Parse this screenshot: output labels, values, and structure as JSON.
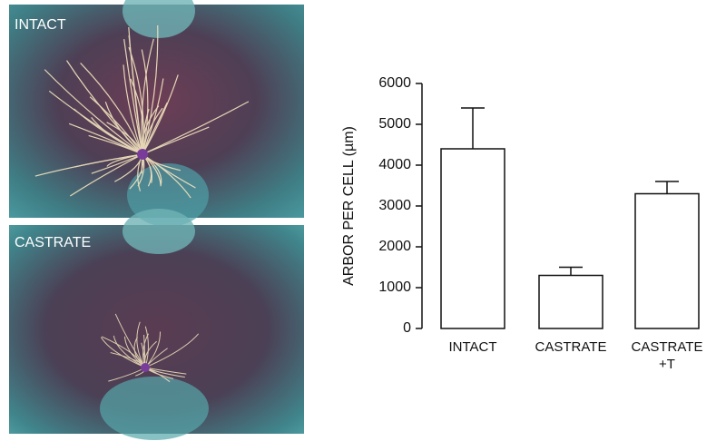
{
  "images": [
    {
      "label": "INTACT"
    },
    {
      "label": "CASTRATE"
    }
  ],
  "chart_data": {
    "type": "bar",
    "ylabel": "ARBOR PER CELL (µm)",
    "categories": [
      "INTACT",
      "CASTRATE",
      "CASTRATE +T"
    ],
    "values": [
      4400,
      1300,
      3300
    ],
    "errors": [
      1000,
      200,
      300
    ],
    "color": "#ffffff",
    "ylim": [
      0,
      6000
    ],
    "yticks": [
      0,
      1000,
      2000,
      3000,
      4000,
      5000,
      6000
    ],
    "grid": false
  }
}
